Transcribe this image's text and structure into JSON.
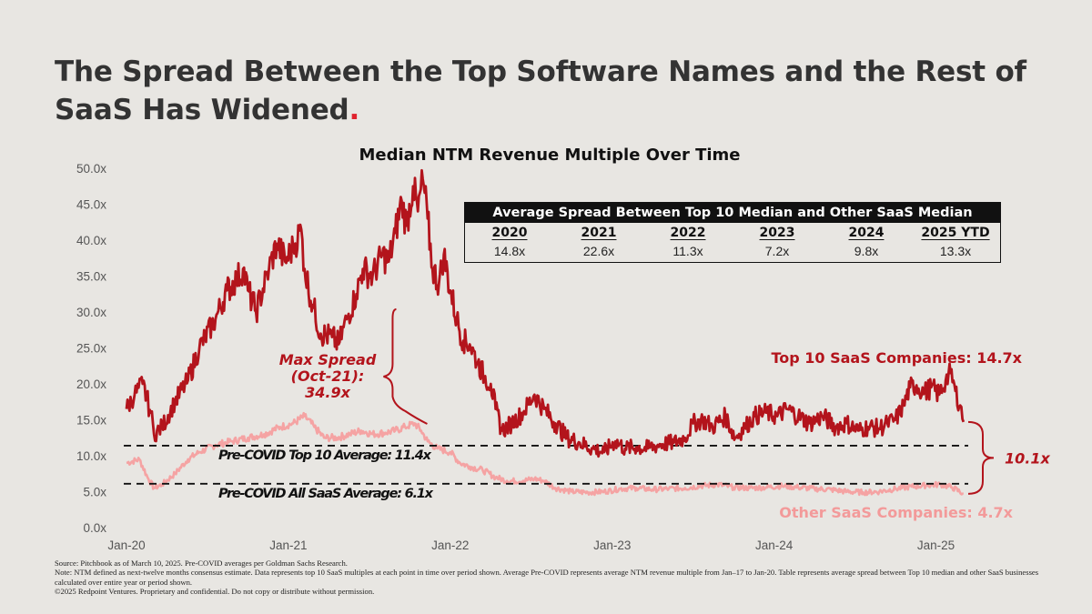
{
  "title": {
    "text": "The Spread Between the Top Software Names and the Rest of SaaS Has Widened",
    "dot": "."
  },
  "colors": {
    "background": "#e8e6e2",
    "top10": "#b3141c",
    "other": "#f5a3a3",
    "annotation_red": "#b3141c",
    "other_label": "#f39a9a",
    "dashed": "#111111"
  },
  "chart_data": {
    "type": "line",
    "title": "Median NTM Revenue Multiple Over Time",
    "xlabel": "",
    "ylabel": "",
    "ylim": [
      0,
      50
    ],
    "y_ticks": [
      "0.0x",
      "5.0x",
      "10.0x",
      "15.0x",
      "20.0x",
      "25.0x",
      "30.0x",
      "35.0x",
      "40.0x",
      "45.0x",
      "50.0x"
    ],
    "x_range": [
      2020.0,
      2025.25
    ],
    "x_ticks": [
      {
        "label": "Jan-20",
        "year": 2020.0
      },
      {
        "label": "Jan-21",
        "year": 2021.0
      },
      {
        "label": "Jan-22",
        "year": 2022.0
      },
      {
        "label": "Jan-23",
        "year": 2023.0
      },
      {
        "label": "Jan-24",
        "year": 2024.0
      },
      {
        "label": "Jan-25",
        "year": 2025.0
      }
    ],
    "grid": false,
    "series": [
      {
        "name": "Top 10 SaaS Companies",
        "end_label": "Top 10 SaaS Companies: 14.7x",
        "anchors": [
          [
            2020.0,
            16.5
          ],
          [
            2020.05,
            18.5
          ],
          [
            2020.1,
            20.0
          ],
          [
            2020.15,
            16.0
          ],
          [
            2020.17,
            13.0
          ],
          [
            2020.22,
            14.0
          ],
          [
            2020.3,
            17.5
          ],
          [
            2020.38,
            20.5
          ],
          [
            2020.45,
            25.0
          ],
          [
            2020.55,
            29.0
          ],
          [
            2020.62,
            33.0
          ],
          [
            2020.68,
            34.5
          ],
          [
            2020.72,
            36.0
          ],
          [
            2020.75,
            33.0
          ],
          [
            2020.8,
            30.0
          ],
          [
            2020.88,
            36.0
          ],
          [
            2020.93,
            39.5
          ],
          [
            2020.98,
            37.0
          ],
          [
            2021.03,
            39.0
          ],
          [
            2021.08,
            41.5
          ],
          [
            2021.1,
            36.0
          ],
          [
            2021.15,
            31.0
          ],
          [
            2021.2,
            27.0
          ],
          [
            2021.27,
            26.5
          ],
          [
            2021.31,
            25.5
          ],
          [
            2021.36,
            29.0
          ],
          [
            2021.42,
            32.5
          ],
          [
            2021.46,
            36.0
          ],
          [
            2021.52,
            35.0
          ],
          [
            2021.58,
            38.0
          ],
          [
            2021.62,
            37.0
          ],
          [
            2021.66,
            41.0
          ],
          [
            2021.7,
            45.5
          ],
          [
            2021.73,
            42.0
          ],
          [
            2021.77,
            47.5
          ],
          [
            2021.8,
            44.0
          ],
          [
            2021.83,
            48.5
          ],
          [
            2021.86,
            43.0
          ],
          [
            2021.89,
            36.0
          ],
          [
            2021.93,
            34.0
          ],
          [
            2021.96,
            38.0
          ],
          [
            2022.0,
            33.0
          ],
          [
            2022.04,
            29.0
          ],
          [
            2022.08,
            26.0
          ],
          [
            2022.12,
            25.5
          ],
          [
            2022.17,
            23.0
          ],
          [
            2022.21,
            21.0
          ],
          [
            2022.25,
            20.0
          ],
          [
            2022.28,
            16.5
          ],
          [
            2022.32,
            13.5
          ],
          [
            2022.38,
            14.5
          ],
          [
            2022.45,
            16.0
          ],
          [
            2022.52,
            18.5
          ],
          [
            2022.58,
            16.5
          ],
          [
            2022.65,
            14.5
          ],
          [
            2022.72,
            12.5
          ],
          [
            2022.8,
            11.8
          ],
          [
            2022.88,
            11.0
          ],
          [
            2022.95,
            10.5
          ],
          [
            2023.02,
            12.0
          ],
          [
            2023.08,
            11.0
          ],
          [
            2023.15,
            11.2
          ],
          [
            2023.22,
            11.0
          ],
          [
            2023.3,
            11.6
          ],
          [
            2023.38,
            11.8
          ],
          [
            2023.45,
            12.5
          ],
          [
            2023.5,
            14.5
          ],
          [
            2023.56,
            15.0
          ],
          [
            2023.62,
            14.0
          ],
          [
            2023.7,
            15.5
          ],
          [
            2023.76,
            12.5
          ],
          [
            2023.82,
            14.0
          ],
          [
            2023.88,
            15.5
          ],
          [
            2023.95,
            16.0
          ],
          [
            2024.02,
            15.5
          ],
          [
            2024.08,
            16.5
          ],
          [
            2024.15,
            15.5
          ],
          [
            2024.22,
            14.5
          ],
          [
            2024.3,
            15.5
          ],
          [
            2024.38,
            14.0
          ],
          [
            2024.45,
            14.5
          ],
          [
            2024.52,
            13.5
          ],
          [
            2024.58,
            14.0
          ],
          [
            2024.65,
            13.8
          ],
          [
            2024.7,
            14.5
          ],
          [
            2024.75,
            15.0
          ],
          [
            2024.8,
            17.0
          ],
          [
            2024.84,
            19.5
          ],
          [
            2024.88,
            19.8
          ],
          [
            2024.93,
            18.8
          ],
          [
            2024.97,
            19.5
          ],
          [
            2025.02,
            18.5
          ],
          [
            2025.06,
            20.5
          ],
          [
            2025.09,
            21.5
          ],
          [
            2025.12,
            19.0
          ],
          [
            2025.15,
            17.0
          ],
          [
            2025.17,
            14.7
          ]
        ],
        "final_value": 14.7
      },
      {
        "name": "Other SaaS Companies",
        "end_label": "Other SaaS Companies: 4.7x",
        "anchors": [
          [
            2020.0,
            9.0
          ],
          [
            2020.08,
            9.5
          ],
          [
            2020.13,
            7.0
          ],
          [
            2020.17,
            5.5
          ],
          [
            2020.22,
            6.0
          ],
          [
            2020.3,
            7.5
          ],
          [
            2020.38,
            9.5
          ],
          [
            2020.45,
            10.5
          ],
          [
            2020.55,
            11.5
          ],
          [
            2020.65,
            12.0
          ],
          [
            2020.75,
            12.5
          ],
          [
            2020.85,
            13.0
          ],
          [
            2020.95,
            14.0
          ],
          [
            2021.03,
            14.5
          ],
          [
            2021.1,
            15.5
          ],
          [
            2021.16,
            14.0
          ],
          [
            2021.22,
            12.5
          ],
          [
            2021.3,
            12.5
          ],
          [
            2021.38,
            13.0
          ],
          [
            2021.45,
            13.5
          ],
          [
            2021.52,
            13.0
          ],
          [
            2021.6,
            13.2
          ],
          [
            2021.66,
            13.5
          ],
          [
            2021.72,
            14.0
          ],
          [
            2021.78,
            14.5
          ],
          [
            2021.82,
            13.5
          ],
          [
            2021.86,
            12.0
          ],
          [
            2021.92,
            11.0
          ],
          [
            2022.0,
            10.5
          ],
          [
            2022.06,
            9.0
          ],
          [
            2022.12,
            8.5
          ],
          [
            2022.2,
            8.0
          ],
          [
            2022.28,
            7.0
          ],
          [
            2022.35,
            6.5
          ],
          [
            2022.45,
            6.5
          ],
          [
            2022.52,
            6.8
          ],
          [
            2022.58,
            6.5
          ],
          [
            2022.65,
            5.5
          ],
          [
            2022.75,
            5.0
          ],
          [
            2022.85,
            4.9
          ],
          [
            2022.95,
            5.0
          ],
          [
            2023.05,
            5.4
          ],
          [
            2023.15,
            5.5
          ],
          [
            2023.25,
            5.3
          ],
          [
            2023.35,
            5.4
          ],
          [
            2023.45,
            5.5
          ],
          [
            2023.55,
            5.8
          ],
          [
            2023.65,
            6.0
          ],
          [
            2023.75,
            5.6
          ],
          [
            2023.85,
            5.5
          ],
          [
            2023.95,
            5.6
          ],
          [
            2024.05,
            5.8
          ],
          [
            2024.15,
            5.6
          ],
          [
            2024.25,
            5.4
          ],
          [
            2024.35,
            5.3
          ],
          [
            2024.45,
            5.0
          ],
          [
            2024.55,
            4.9
          ],
          [
            2024.65,
            5.0
          ],
          [
            2024.75,
            5.4
          ],
          [
            2024.85,
            5.7
          ],
          [
            2024.95,
            5.9
          ],
          [
            2025.03,
            6.0
          ],
          [
            2025.1,
            5.6
          ],
          [
            2025.17,
            4.7
          ]
        ],
        "final_value": 4.7
      }
    ],
    "reference_lines": [
      {
        "name": "Pre-COVID Top 10 Average",
        "value": 11.4,
        "label": "Pre-COVID Top 10 Average: 11.4x"
      },
      {
        "name": "Pre-COVID All SaaS Average",
        "value": 6.1,
        "label": "Pre-COVID All SaaS Average: 6.1x"
      }
    ],
    "annotations": {
      "max_spread": {
        "line1": "Max Spread",
        "line2": "(Oct-21):",
        "line3": "34.9x",
        "year": 2021.79
      },
      "current_spread": {
        "label": "10.1x"
      }
    }
  },
  "spread_table": {
    "title": "Average Spread Between Top 10 Median and Other SaaS Median",
    "columns": [
      "2020",
      "2021",
      "2022",
      "2023",
      "2024",
      "2025 YTD"
    ],
    "values": [
      "14.8x",
      "22.6x",
      "11.3x",
      "7.2x",
      "9.8x",
      "13.3x"
    ]
  },
  "footnotes": {
    "source": "Source: Pitchbook as of March 10, 2025. Pre-COVID averages per Goldman Sachs Research.",
    "note": "Note: NTM defined as next-twelve months consensus estimate. Data represents top 10 SaaS multiples at each point in time over period shown. Average Pre-COVID represents average NTM revenue multiple from Jan–17 to Jan-20. Table represents average spread between Top 10 median and other SaaS businesses calculated over entire year or period shown.",
    "copyright": "©2025 Redpoint Ventures. Proprietary and confidential. Do not copy or distribute without permission."
  }
}
